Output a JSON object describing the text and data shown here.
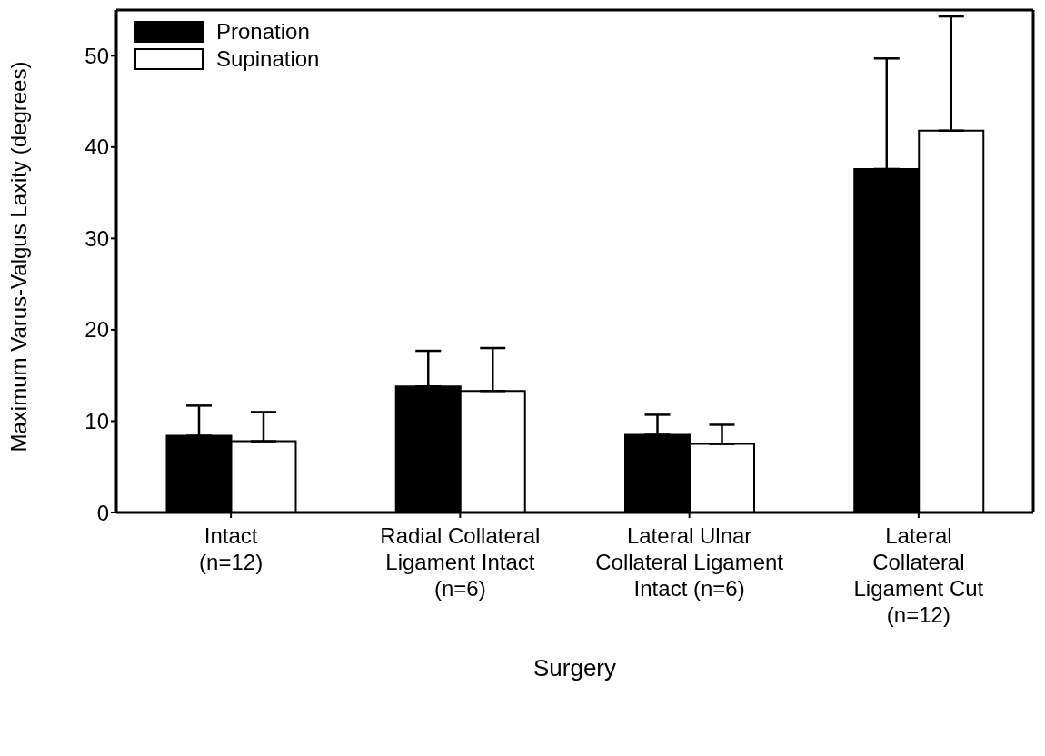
{
  "chart_data": {
    "type": "bar",
    "xlabel": "Surgery",
    "ylabel": "Maximum Varus-Valgus Laxity (degrees)",
    "categories": [
      "Intact\n(n=12)",
      "Radial Collateral\nLigament Intact\n(n=6)",
      "Lateral Ulnar\nCollateral Ligament\nIntact (n=6)",
      "Lateral\nCollateral\nLigament Cut\n(n=12)"
    ],
    "series": [
      {
        "name": "Pronation",
        "color": "#000000",
        "values": [
          8.4,
          13.8,
          8.5,
          37.6
        ],
        "errors": [
          [
            8.4,
            11.7
          ],
          [
            13.8,
            17.7
          ],
          [
            8.5,
            10.7
          ],
          [
            37.6,
            49.7
          ]
        ]
      },
      {
        "name": "Supination",
        "color": "#ffffff",
        "values": [
          7.8,
          13.3,
          7.5,
          41.8
        ],
        "errors": [
          [
            7.8,
            11.0
          ],
          [
            13.3,
            18.0
          ],
          [
            7.5,
            9.6
          ],
          [
            41.8,
            54.3
          ]
        ]
      }
    ],
    "ylim": [
      0,
      55
    ],
    "yticks": [
      0,
      10,
      20,
      30,
      40,
      50
    ],
    "grid": false,
    "legend": "top left"
  }
}
